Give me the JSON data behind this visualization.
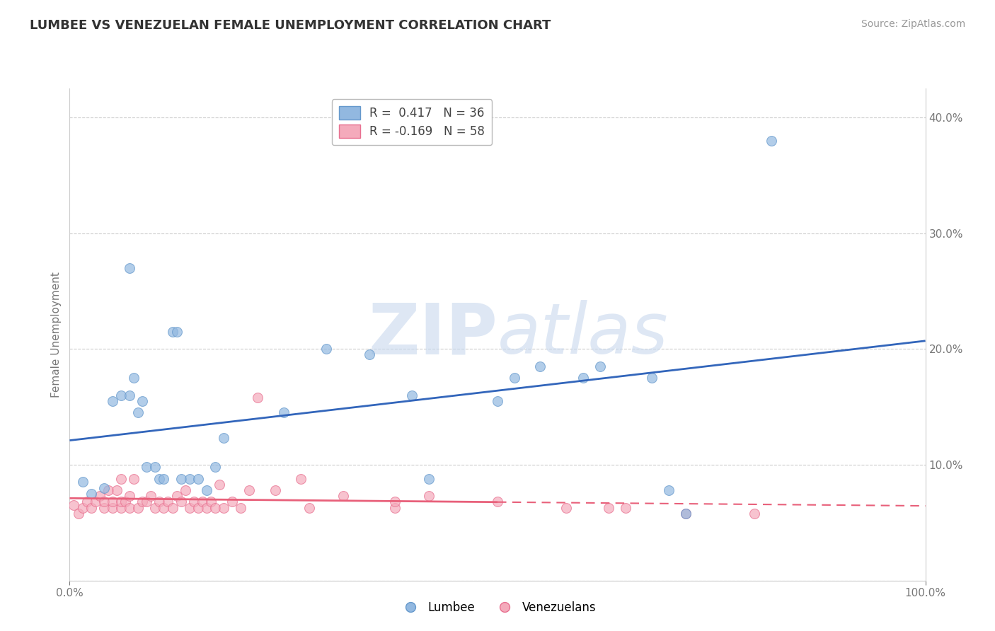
{
  "title": "LUMBEE VS VENEZUELAN FEMALE UNEMPLOYMENT CORRELATION CHART",
  "source": "Source: ZipAtlas.com",
  "ylabel": "Female Unemployment",
  "xlim": [
    0,
    1.0
  ],
  "ylim": [
    0,
    0.425
  ],
  "yticks": [
    0.0,
    0.1,
    0.2,
    0.3,
    0.4
  ],
  "yticklabels": [
    "",
    "10.0%",
    "20.0%",
    "30.0%",
    "40.0%"
  ],
  "lumbee_color": "#92B8E0",
  "lumbee_edge_color": "#6699CC",
  "venezuelan_color": "#F4AABB",
  "venezuelan_edge_color": "#E87090",
  "lumbee_line_color": "#3366BB",
  "venezuelan_line_color": "#E8607A",
  "lumbee_r": 0.417,
  "lumbee_n": 36,
  "venezuelan_r": -0.169,
  "venezuelan_n": 58,
  "lumbee_scatter": [
    [
      0.015,
      0.085
    ],
    [
      0.025,
      0.075
    ],
    [
      0.04,
      0.08
    ],
    [
      0.05,
      0.155
    ],
    [
      0.06,
      0.16
    ],
    [
      0.07,
      0.16
    ],
    [
      0.075,
      0.175
    ],
    [
      0.08,
      0.145
    ],
    [
      0.085,
      0.155
    ],
    [
      0.09,
      0.098
    ],
    [
      0.1,
      0.098
    ],
    [
      0.105,
      0.088
    ],
    [
      0.11,
      0.088
    ],
    [
      0.12,
      0.215
    ],
    [
      0.125,
      0.215
    ],
    [
      0.13,
      0.088
    ],
    [
      0.14,
      0.088
    ],
    [
      0.15,
      0.088
    ],
    [
      0.16,
      0.078
    ],
    [
      0.17,
      0.098
    ],
    [
      0.18,
      0.123
    ],
    [
      0.07,
      0.27
    ],
    [
      0.25,
      0.145
    ],
    [
      0.35,
      0.195
    ],
    [
      0.4,
      0.16
    ],
    [
      0.42,
      0.088
    ],
    [
      0.5,
      0.155
    ],
    [
      0.55,
      0.185
    ],
    [
      0.52,
      0.175
    ],
    [
      0.6,
      0.175
    ],
    [
      0.62,
      0.185
    ],
    [
      0.68,
      0.175
    ],
    [
      0.7,
      0.078
    ],
    [
      0.82,
      0.38
    ],
    [
      0.3,
      0.2
    ],
    [
      0.72,
      0.058
    ]
  ],
  "venezuelan_scatter": [
    [
      0.005,
      0.065
    ],
    [
      0.01,
      0.058
    ],
    [
      0.015,
      0.063
    ],
    [
      0.02,
      0.068
    ],
    [
      0.025,
      0.063
    ],
    [
      0.03,
      0.068
    ],
    [
      0.035,
      0.073
    ],
    [
      0.04,
      0.063
    ],
    [
      0.04,
      0.068
    ],
    [
      0.045,
      0.078
    ],
    [
      0.05,
      0.063
    ],
    [
      0.05,
      0.068
    ],
    [
      0.055,
      0.078
    ],
    [
      0.06,
      0.063
    ],
    [
      0.06,
      0.068
    ],
    [
      0.06,
      0.088
    ],
    [
      0.065,
      0.068
    ],
    [
      0.07,
      0.073
    ],
    [
      0.07,
      0.063
    ],
    [
      0.075,
      0.088
    ],
    [
      0.08,
      0.063
    ],
    [
      0.085,
      0.068
    ],
    [
      0.09,
      0.068
    ],
    [
      0.095,
      0.073
    ],
    [
      0.1,
      0.063
    ],
    [
      0.105,
      0.068
    ],
    [
      0.11,
      0.063
    ],
    [
      0.115,
      0.068
    ],
    [
      0.12,
      0.063
    ],
    [
      0.125,
      0.073
    ],
    [
      0.13,
      0.068
    ],
    [
      0.135,
      0.078
    ],
    [
      0.14,
      0.063
    ],
    [
      0.145,
      0.068
    ],
    [
      0.15,
      0.063
    ],
    [
      0.155,
      0.068
    ],
    [
      0.16,
      0.063
    ],
    [
      0.165,
      0.068
    ],
    [
      0.17,
      0.063
    ],
    [
      0.175,
      0.083
    ],
    [
      0.18,
      0.063
    ],
    [
      0.19,
      0.068
    ],
    [
      0.2,
      0.063
    ],
    [
      0.21,
      0.078
    ],
    [
      0.22,
      0.158
    ],
    [
      0.24,
      0.078
    ],
    [
      0.27,
      0.088
    ],
    [
      0.28,
      0.063
    ],
    [
      0.32,
      0.073
    ],
    [
      0.38,
      0.063
    ],
    [
      0.42,
      0.073
    ],
    [
      0.5,
      0.068
    ],
    [
      0.38,
      0.068
    ],
    [
      0.58,
      0.063
    ],
    [
      0.63,
      0.063
    ],
    [
      0.65,
      0.063
    ],
    [
      0.72,
      0.058
    ],
    [
      0.8,
      0.058
    ]
  ],
  "background_color": "#FFFFFF",
  "grid_color": "#CCCCCC",
  "watermark_zip": "ZIP",
  "watermark_atlas": "atlas",
  "figsize": [
    14.06,
    8.92
  ],
  "dpi": 100
}
